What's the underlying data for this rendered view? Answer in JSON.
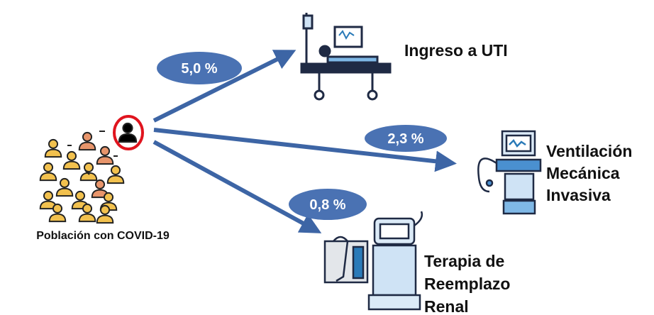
{
  "population": {
    "label": "Población con COVID-19"
  },
  "outcomes": [
    {
      "percentage": "5,0 %",
      "label_lines": [
        "Ingreso a UTI"
      ]
    },
    {
      "percentage": "2,3 %",
      "label_lines": [
        "Ventilación",
        "Mecánica",
        "Invasiva"
      ]
    },
    {
      "percentage": "0,8 %",
      "label_lines": [
        "Terapia de",
        "Reemplazo",
        "Renal"
      ]
    }
  ]
}
